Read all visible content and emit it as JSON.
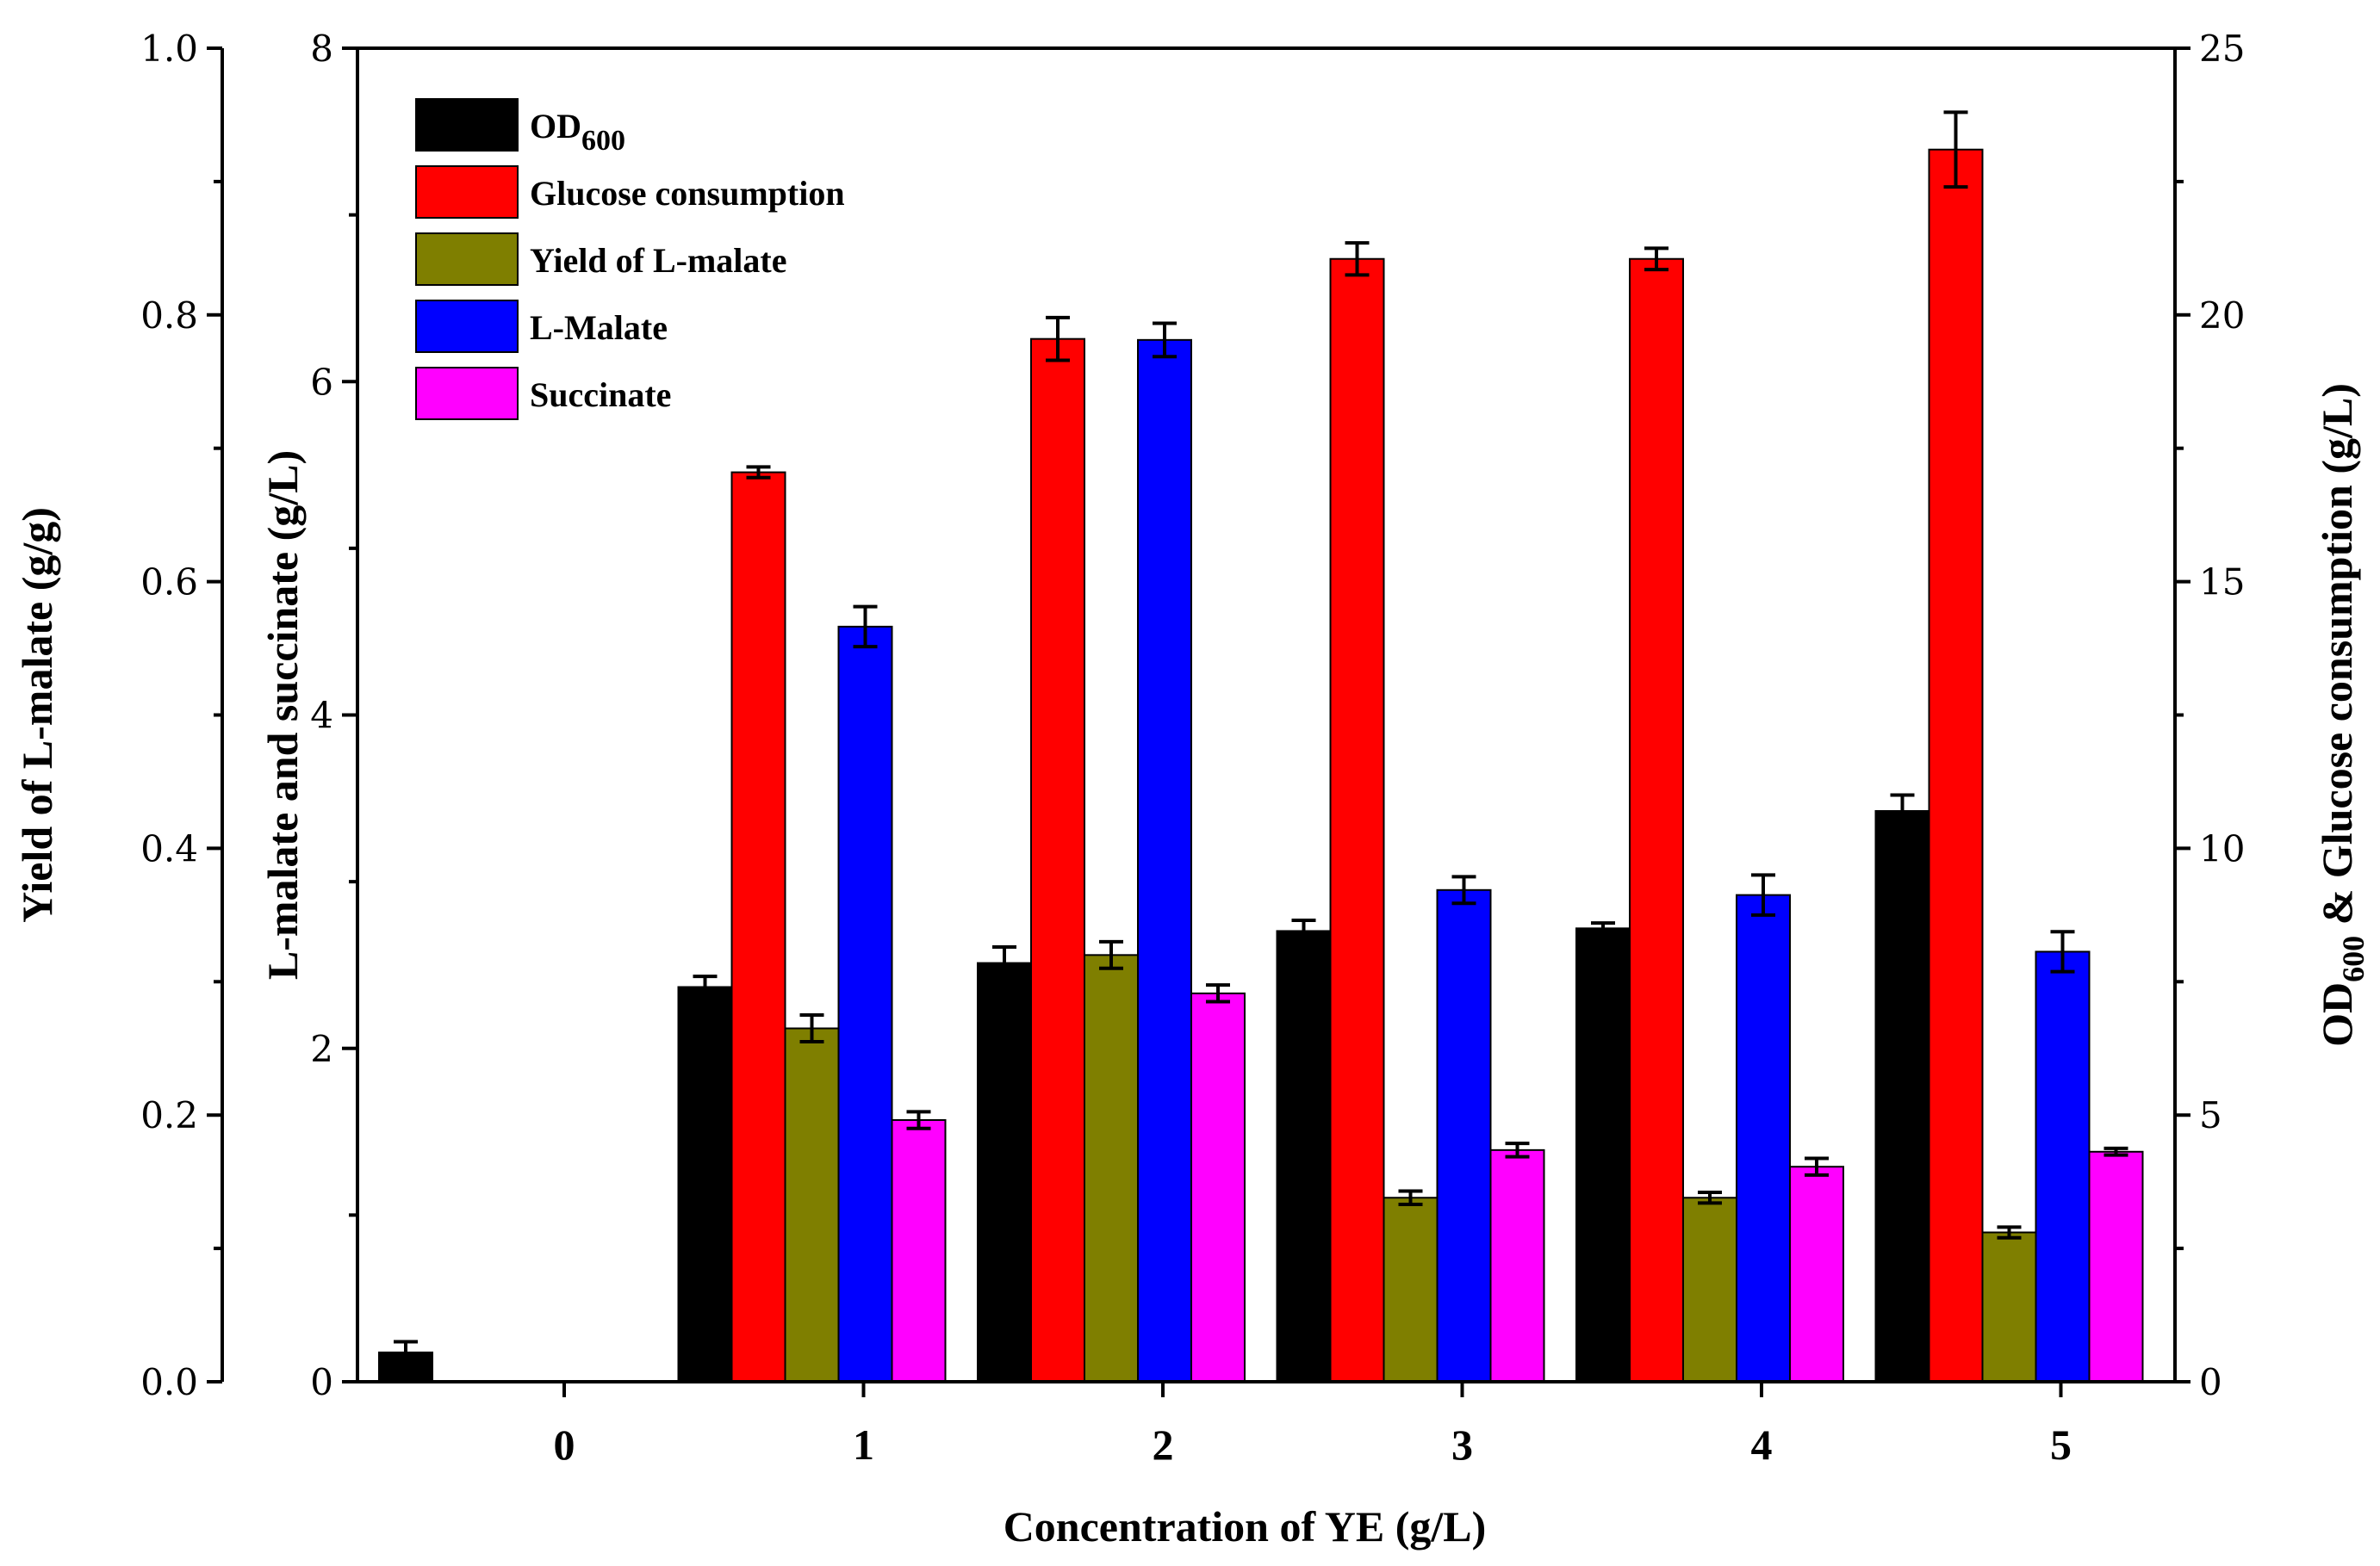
{
  "chart_data": {
    "type": "bar",
    "categories": [
      "0",
      "1",
      "2",
      "3",
      "4",
      "5"
    ],
    "xlabel": "Concentration of YE (g/L)",
    "axes": {
      "yield": {
        "label": "Yield of L-malate (g/g)",
        "range": [
          0,
          1.0
        ],
        "ticks": [
          "0.0",
          "0.2",
          "0.4",
          "0.6",
          "0.8",
          "1.0"
        ]
      },
      "conc": {
        "label": "L-malate and succinate (g/L)",
        "range": [
          0,
          8
        ],
        "ticks": [
          "0",
          "2",
          "4",
          "6",
          "8"
        ]
      },
      "od": {
        "label_main": "OD",
        "label_sub": "600",
        "label_rest": " & Glucose consumption (g/L)",
        "range": [
          0,
          25
        ],
        "ticks": [
          "0",
          "5",
          "10",
          "15",
          "20",
          "25"
        ]
      }
    },
    "series": [
      {
        "name": "OD",
        "name_sub": "600",
        "axis": "od",
        "color": "#000000",
        "values": [
          0.55,
          7.4,
          7.85,
          8.45,
          8.5,
          10.7
        ],
        "errors": [
          0.2,
          0.2,
          0.3,
          0.2,
          0.1,
          0.3
        ]
      },
      {
        "name": "Glucose consumption",
        "axis": "od",
        "color": "#ff0000",
        "values": [
          0,
          17.05,
          19.55,
          21.05,
          21.05,
          23.1
        ],
        "errors": [
          0,
          0.1,
          0.4,
          0.3,
          0.2,
          0.7
        ]
      },
      {
        "name": "Yield of L-malate",
        "axis": "yield",
        "color": "#7f7f00",
        "values": [
          0,
          0.265,
          0.32,
          0.138,
          0.138,
          0.112
        ],
        "errors": [
          0,
          0.01,
          0.01,
          0.005,
          0.004,
          0.004
        ]
      },
      {
        "name": "L-Malate",
        "axis": "conc",
        "color": "#0000ff",
        "values": [
          0,
          4.53,
          6.25,
          2.95,
          2.92,
          2.58
        ],
        "errors": [
          0,
          0.12,
          0.1,
          0.08,
          0.12,
          0.12
        ]
      },
      {
        "name": "Succinate",
        "axis": "conc",
        "color": "#ff00ff",
        "values": [
          0,
          1.57,
          2.33,
          1.39,
          1.29,
          1.38
        ],
        "errors": [
          0,
          0.05,
          0.05,
          0.04,
          0.05,
          0.02
        ]
      }
    ],
    "legend_position": "top-left"
  }
}
